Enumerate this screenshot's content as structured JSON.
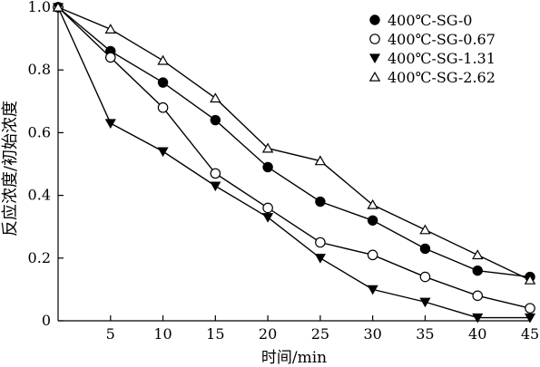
{
  "chart_data": {
    "type": "line",
    "title": "",
    "xlabel": "时间/min",
    "ylabel": "反应浓度/初始浓度",
    "xlim": [
      0,
      45
    ],
    "ylim": [
      0,
      1.0
    ],
    "grid": false,
    "legend_position": "top-right",
    "x_ticks": [
      5,
      10,
      15,
      20,
      25,
      30,
      35,
      40,
      45
    ],
    "x_tick_labels": [
      "5",
      "10",
      "15",
      "20",
      "25",
      "30",
      "35",
      "40",
      "45"
    ],
    "y_ticks": [
      0,
      0.2,
      0.4,
      0.6,
      0.8,
      1.0
    ],
    "y_tick_labels": [
      "0",
      "0.2",
      "0.4",
      "0.6",
      "0.8",
      "1.0"
    ],
    "series": [
      {
        "name": "400℃-SG-0",
        "marker": "filled-circle",
        "x": [
          0,
          5,
          10,
          15,
          20,
          25,
          30,
          35,
          40,
          45
        ],
        "y": [
          1.0,
          0.86,
          0.76,
          0.64,
          0.49,
          0.38,
          0.32,
          0.23,
          0.16,
          0.14
        ]
      },
      {
        "name": "400℃-SG-0.67",
        "marker": "open-circle",
        "x": [
          0,
          5,
          10,
          15,
          20,
          25,
          30,
          35,
          40,
          45
        ],
        "y": [
          1.0,
          0.84,
          0.68,
          0.47,
          0.36,
          0.25,
          0.21,
          0.14,
          0.08,
          0.04
        ]
      },
      {
        "name": "400℃-SG-1.31",
        "marker": "filled-triangle-down",
        "x": [
          0,
          5,
          10,
          15,
          20,
          25,
          30,
          35,
          40,
          45
        ],
        "y": [
          1.0,
          0.63,
          0.54,
          0.43,
          0.33,
          0.2,
          0.1,
          0.06,
          0.01,
          0.01
        ]
      },
      {
        "name": "400℃-SG-2.62",
        "marker": "open-triangle-up",
        "x": [
          0,
          5,
          10,
          15,
          20,
          25,
          30,
          35,
          40,
          45
        ],
        "y": [
          1.0,
          0.93,
          0.83,
          0.71,
          0.55,
          0.51,
          0.37,
          0.29,
          0.21,
          0.13
        ]
      }
    ]
  }
}
